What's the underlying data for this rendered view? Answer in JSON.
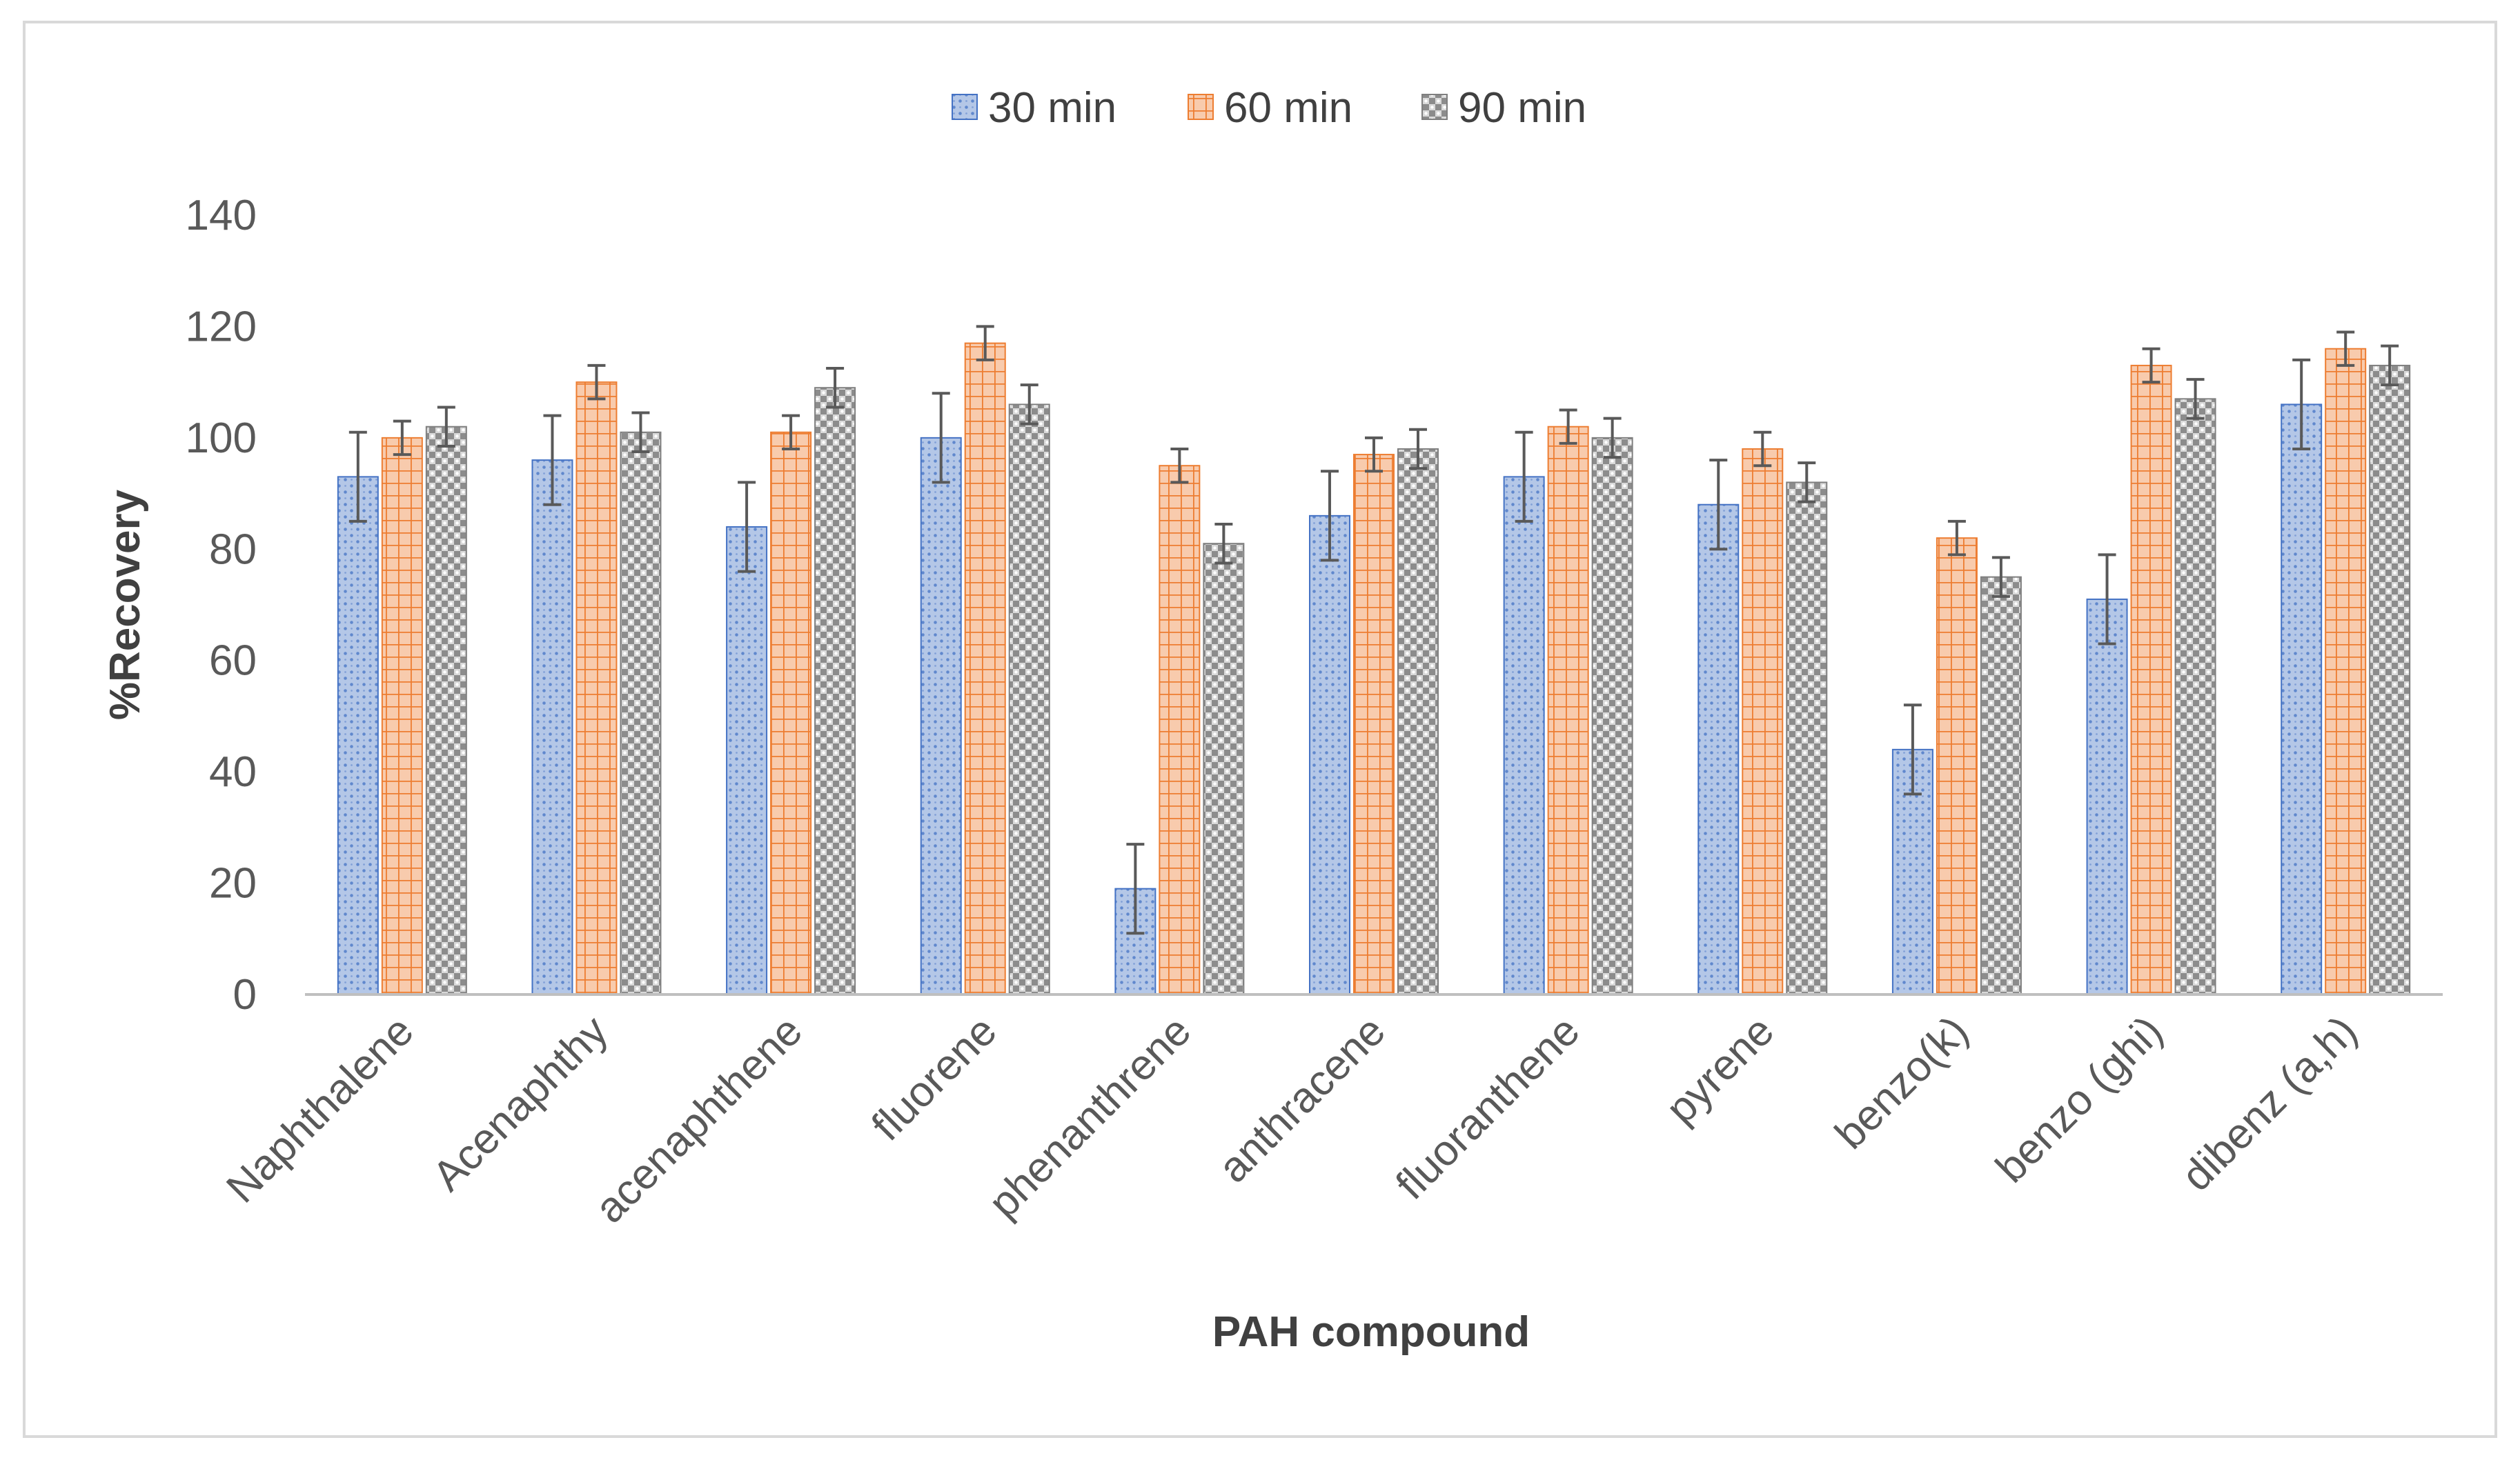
{
  "chart_data": {
    "type": "bar",
    "title": "",
    "xlabel": "PAH compound",
    "ylabel": "%Recovery",
    "ylim": [
      0,
      140
    ],
    "yticks": [
      0,
      20,
      40,
      60,
      80,
      100,
      120,
      140
    ],
    "grid": false,
    "legend_position": "top-center",
    "categories": [
      "Naphthalene",
      "Acenaphthy",
      "acenaphthene",
      "fluorene",
      "phenanthrene",
      "anthracene",
      "fluoranthene",
      "pyrene",
      "benzo(k)",
      "benzo (ghi)",
      "dibenz (a,h)"
    ],
    "series": [
      {
        "name": "30 min",
        "color": "#4472c4",
        "fill": "#b4c7e7",
        "pattern": "dotted",
        "values": [
          93,
          96,
          84,
          100,
          19,
          86,
          93,
          88,
          44,
          71,
          106
        ],
        "errors": [
          8,
          8,
          8,
          8,
          8,
          8,
          8,
          8,
          8,
          8,
          8
        ]
      },
      {
        "name": "60 min",
        "color": "#ed7d31",
        "fill": "#f8cbad",
        "pattern": "grid",
        "values": [
          100,
          110,
          101,
          117,
          95,
          97,
          102,
          98,
          82,
          113,
          116
        ],
        "errors": [
          3,
          3,
          3,
          3,
          3,
          3,
          3,
          3,
          3,
          3,
          3
        ]
      },
      {
        "name": "90 min",
        "color": "#7f7f7f",
        "fill": "#d9d9d9",
        "pattern": "checker",
        "values": [
          102,
          101,
          109,
          106,
          81,
          98,
          100,
          92,
          75,
          107,
          113
        ],
        "errors": [
          3.5,
          3.5,
          3.5,
          3.5,
          3.5,
          3.5,
          3.5,
          3.5,
          3.5,
          3.5,
          3.5
        ]
      }
    ]
  }
}
